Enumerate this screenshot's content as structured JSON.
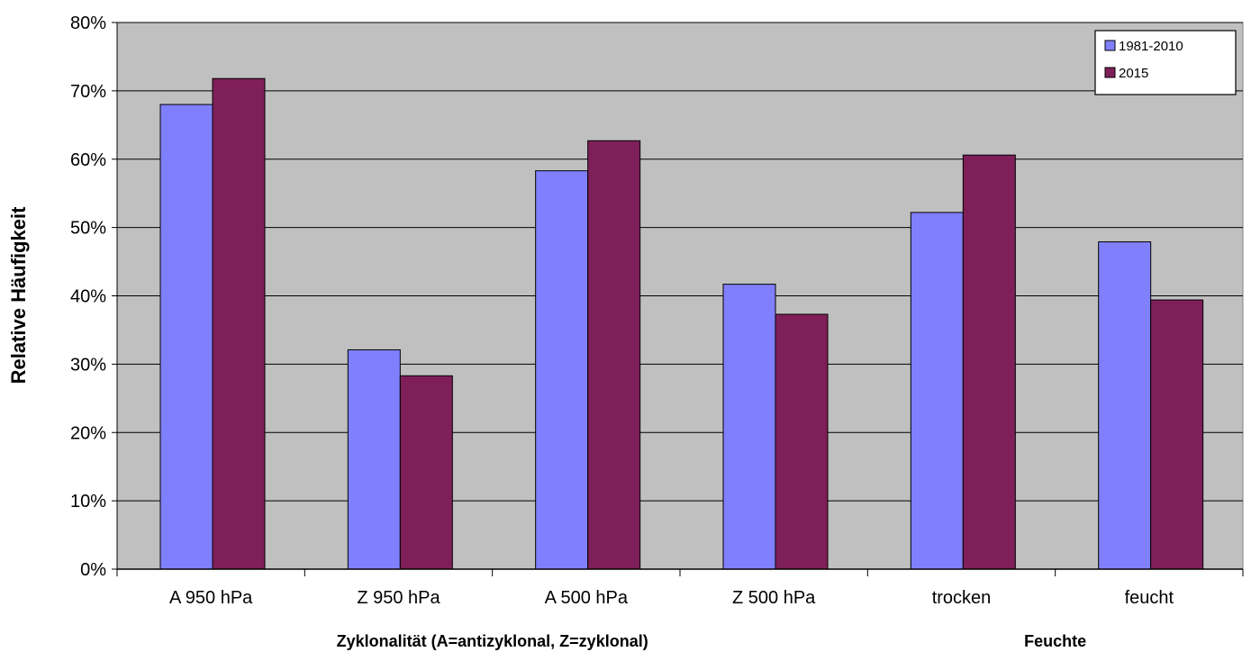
{
  "chart_data": {
    "type": "bar",
    "categories": [
      "A 950 hPa",
      "Z 950 hPa",
      "A 500 hPa",
      "Z 500 hPa",
      "trocken",
      "feucht"
    ],
    "series": [
      {
        "name": "1981-2010",
        "color": "#8080ff",
        "values": [
          68,
          32.1,
          58.3,
          41.7,
          52.2,
          47.9
        ]
      },
      {
        "name": "2015",
        "color": "#7f1f5a",
        "values": [
          71.8,
          28.3,
          62.7,
          37.3,
          60.6,
          39.4
        ]
      }
    ],
    "title": "",
    "ylabel": "Relative Häufigkeit",
    "xlabel_groups": [
      {
        "label": "Zyklonalität (A=antizyklonal, Z=zyklonal)",
        "categories": [
          0,
          1,
          2,
          3
        ]
      },
      {
        "label": "Feuchte",
        "categories": [
          4,
          5
        ]
      }
    ],
    "ylim": [
      0,
      80
    ],
    "yticks": [
      0,
      10,
      20,
      30,
      40,
      50,
      60,
      70,
      80
    ],
    "ytick_labels": [
      "0%",
      "10%",
      "20%",
      "30%",
      "40%",
      "50%",
      "60%",
      "70%",
      "80%"
    ],
    "grid": true,
    "plot_background": "#c0c0c0",
    "legend_position": "top-right"
  }
}
